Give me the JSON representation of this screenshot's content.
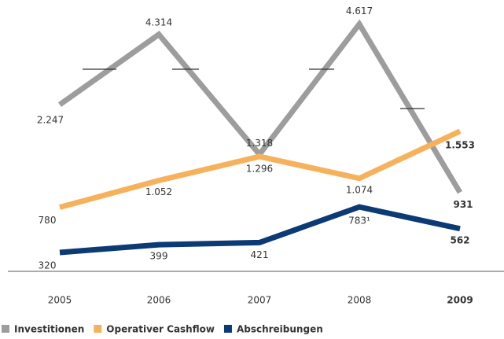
{
  "chart_data": {
    "type": "line",
    "categories": [
      "2005",
      "2006",
      "2007",
      "2008",
      "2009"
    ],
    "series": [
      {
        "name": "Investitionen",
        "color": "#9d9d9d",
        "values": [
          2247,
          4314,
          1318,
          4617,
          931
        ],
        "value_labels": [
          "2.247",
          "4.314",
          "1.318",
          "4.617",
          "931"
        ]
      },
      {
        "name": "Operativer Cashflow",
        "color": "#f6b15c",
        "values": [
          780,
          1052,
          1296,
          1074,
          1553
        ],
        "value_labels": [
          "780",
          "1.052",
          "1.296",
          "1.074",
          "1.553"
        ]
      },
      {
        "name": "Abschreibungen",
        "color": "#0b3a75",
        "values": [
          320,
          399,
          421,
          783,
          562
        ],
        "value_labels": [
          "320",
          "399",
          "421",
          "783¹",
          "562"
        ]
      }
    ],
    "legend": "bottom-left"
  }
}
